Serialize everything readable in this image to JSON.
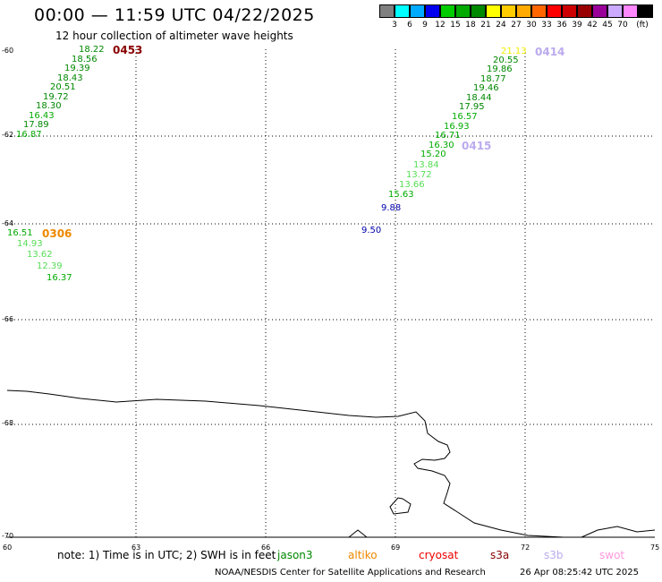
{
  "header": {
    "title": "00:00 — 11:59 UTC 04/22/2025",
    "subtitle": "12 hour collection of altimeter wave heights"
  },
  "legend": {
    "colors": [
      "#808080",
      "#00ffff",
      "#00aaff",
      "#0000ee",
      "#00cc00",
      "#00aa00",
      "#008800",
      "#ffff00",
      "#ffcc00",
      "#ffaa00",
      "#ff6600",
      "#ff0000",
      "#cc0000",
      "#990000",
      "#990099",
      "#ccaaff",
      "#ff88ff",
      "#000000"
    ],
    "labels": [
      "3",
      "6",
      "9",
      "12",
      "15",
      "18",
      "21",
      "24",
      "27",
      "30",
      "33",
      "36",
      "39",
      "42",
      "45",
      "70",
      "(ft)"
    ]
  },
  "axes": {
    "lon_ticks": [
      "60",
      "63",
      "66",
      "69",
      "72",
      "75"
    ],
    "lat_ticks": [
      "-60",
      "-62",
      "-64",
      "-66",
      "-68",
      "-70"
    ]
  },
  "passes": [
    {
      "id": "0453",
      "color": "#880000"
    },
    {
      "id": "0414",
      "color": "#bbaaee"
    },
    {
      "id": "0415",
      "color": "#bbaaee"
    },
    {
      "id": "0306",
      "color": "#ee8800"
    }
  ],
  "observations": [
    {
      "v": "18.22",
      "c": "#008800"
    },
    {
      "v": "18.56",
      "c": "#008800"
    },
    {
      "v": "19.39",
      "c": "#008800"
    },
    {
      "v": "18.43",
      "c": "#008800"
    },
    {
      "v": "20.51",
      "c": "#008800"
    },
    {
      "v": "19.72",
      "c": "#008800"
    },
    {
      "v": "18.30",
      "c": "#008800"
    },
    {
      "v": "16.43",
      "c": "#00aa00"
    },
    {
      "v": "17.89",
      "c": "#008800"
    },
    {
      "v": "16.87",
      "c": "#00aa00"
    },
    {
      "v": "21.13",
      "c": "#eeee00"
    },
    {
      "v": "20.55",
      "c": "#008800"
    },
    {
      "v": "19.86",
      "c": "#008800"
    },
    {
      "v": "18.77",
      "c": "#008800"
    },
    {
      "v": "19.46",
      "c": "#008800"
    },
    {
      "v": "18.44",
      "c": "#008800"
    },
    {
      "v": "17.95",
      "c": "#008800"
    },
    {
      "v": "16.57",
      "c": "#00aa00"
    },
    {
      "v": "16.93",
      "c": "#00aa00"
    },
    {
      "v": "16.71",
      "c": "#00aa00"
    },
    {
      "v": "16.30",
      "c": "#00aa00"
    },
    {
      "v": "15.20",
      "c": "#00aa00"
    },
    {
      "v": "13.84",
      "c": "#55dd55"
    },
    {
      "v": "13.72",
      "c": "#55dd55"
    },
    {
      "v": "13.66",
      "c": "#55dd55"
    },
    {
      "v": "15.63",
      "c": "#00aa00"
    },
    {
      "v": "9.88",
      "c": "#0000aa"
    },
    {
      "v": "9.50",
      "c": "#0000aa"
    },
    {
      "v": "16.51",
      "c": "#00aa00"
    },
    {
      "v": "14.93",
      "c": "#55dd55"
    },
    {
      "v": "13.62",
      "c": "#55dd55"
    },
    {
      "v": "12.39",
      "c": "#55dd55"
    },
    {
      "v": "16.37",
      "c": "#00aa00"
    }
  ],
  "footer": {
    "note": "note: 1) Time is in UTC; 2) SWH is in feet",
    "satellites": [
      {
        "name": "jason3",
        "color": "#008800"
      },
      {
        "name": "altiko",
        "color": "#ee8800"
      },
      {
        "name": "cryosat",
        "color": "#ee0000"
      },
      {
        "name": "s3a",
        "color": "#880000"
      },
      {
        "name": "s3b",
        "color": "#bbaaee"
      },
      {
        "name": "swot",
        "color": "#ff99dd"
      }
    ],
    "credit": "NOAA/NESDIS Center for Satellite Applications and Research",
    "timestamp": "26 Apr 08:25:42 UTC 2025"
  }
}
